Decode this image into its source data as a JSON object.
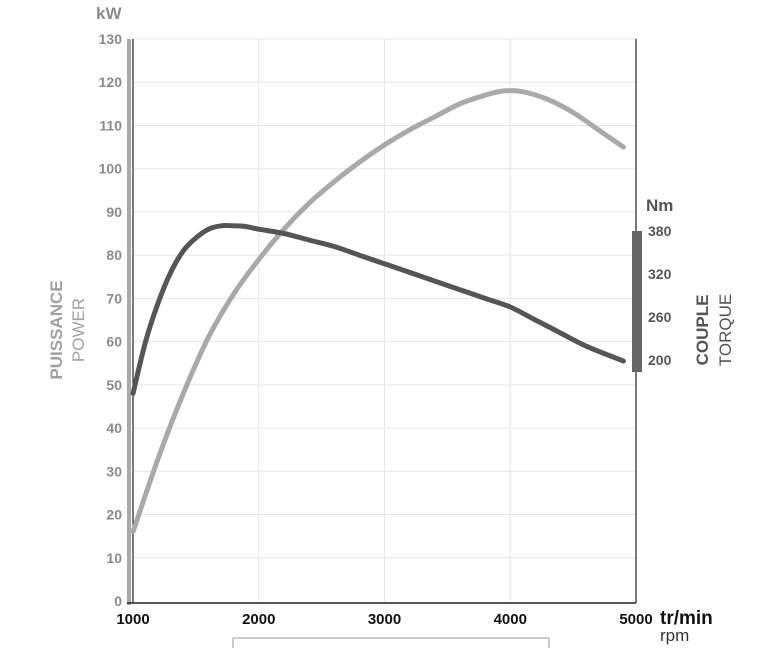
{
  "chart_data": {
    "type": "line",
    "x": [
      1000,
      1200,
      1400,
      1600,
      1800,
      2000,
      2200,
      2400,
      2600,
      2800,
      3000,
      3200,
      3400,
      3600,
      3800,
      4000,
      4200,
      4400,
      4600,
      4900
    ],
    "xlim": [
      1000,
      5000
    ],
    "x_ticks": [
      "1000",
      "2000",
      "3000",
      "4000",
      "5000"
    ],
    "x_unit": "tr/min",
    "x_unit_en": "rpm",
    "left_axis": {
      "unit": "kW",
      "label": "PUISSANCE",
      "label_en": "POWER",
      "ylim": [
        0,
        130
      ],
      "ticks": [
        "0",
        "10",
        "20",
        "30",
        "40",
        "50",
        "60",
        "70",
        "80",
        "90",
        "100",
        "110",
        "120",
        "130"
      ]
    },
    "right_axis": {
      "unit": "Nm",
      "label": "COUPLE",
      "label_en": "TORQUE",
      "ticks": [
        "380",
        "320",
        "260",
        "200"
      ],
      "tick_values": [
        380,
        320,
        260,
        200
      ]
    },
    "series": [
      {
        "axis": "left",
        "color": "#a9a9a9",
        "x": [
          1000,
          1200,
          1400,
          1600,
          1800,
          2000,
          2200,
          2400,
          2600,
          2800,
          3000,
          3200,
          3400,
          3600,
          3800,
          3950,
          4100,
          4300,
          4500,
          4700,
          4900
        ],
        "values": [
          16,
          33,
          48,
          61,
          71,
          79,
          86,
          92,
          97,
          101.5,
          105.5,
          109,
          112,
          115,
          117,
          118,
          117.8,
          116,
          113,
          109,
          105
        ]
      },
      {
        "axis": "right",
        "color": "#555555",
        "x": [
          1000,
          1100,
          1200,
          1300,
          1400,
          1500,
          1600,
          1700,
          1800,
          1900,
          2000,
          2200,
          2400,
          2600,
          2800,
          3000,
          3200,
          3400,
          3600,
          3800,
          4000,
          4200,
          4400,
          4600,
          4900
        ],
        "values": [
          48,
          60,
          69,
          76,
          81,
          84,
          86,
          86.8,
          86.8,
          86.6,
          86,
          85,
          83.5,
          82,
          80,
          78,
          76,
          74,
          72,
          70,
          68,
          65,
          62,
          59,
          55.5
        ]
      }
    ],
    "grid": true
  }
}
